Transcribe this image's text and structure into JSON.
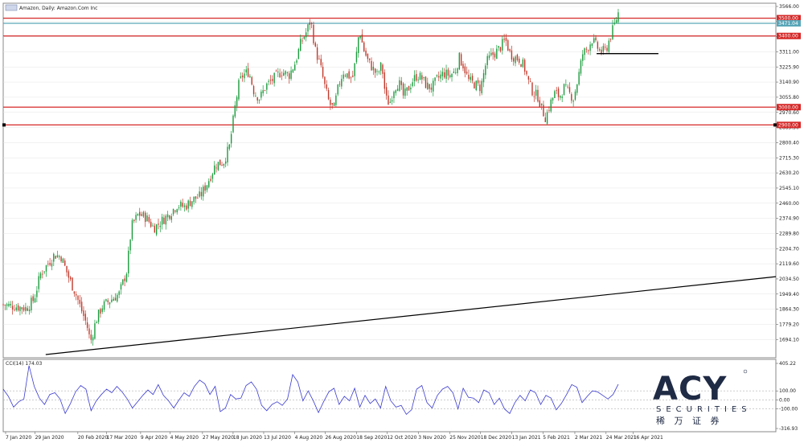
{
  "chart_data": [
    {
      "type": "candlestick",
      "title": "Amazon, Daily: Amazon.Com Inc",
      "ylim": [
        1609.4,
        3566.0
      ],
      "y_ticks": [
        "3566.00",
        "3481.00",
        "3396.00",
        "3311.00",
        "3225.90",
        "3140.90",
        "3055.80",
        "2970.60",
        "2885.50",
        "2800.40",
        "2715.30",
        "2630.20",
        "2545.10",
        "2460.00",
        "2374.90",
        "2289.80",
        "2204.70",
        "2119.60",
        "2034.50",
        "1949.40",
        "1864.30",
        "1779.20",
        "1694.10"
      ],
      "x_ticks": [
        "7 Jan 2020",
        "29 Jan 2020",
        "20 Feb 2020",
        "17 Mar 2020",
        "9 Apr 2020",
        "4 May 2020",
        "27 May 2020",
        "18 Jun 2020",
        "13 Jul 2020",
        "4 Aug 2020",
        "26 Aug 2020",
        "18 Sep 2020",
        "12 Oct 2020",
        "3 Nov 2020",
        "25 Nov 2020",
        "18 Dec 2020",
        "13 Jan 2021",
        "5 Feb 2021",
        "2 Mar 2021",
        "24 Mar 2021",
        "16 Apr 2021"
      ],
      "x_tick_frac": [
        0.0,
        0.0381,
        0.0935,
        0.1306,
        0.1747,
        0.2129,
        0.2548,
        0.2944,
        0.334,
        0.3742,
        0.4136,
        0.454,
        0.4936,
        0.5341,
        0.5747,
        0.6147,
        0.6552,
        0.6954,
        0.7367,
        0.7771,
        0.8124
      ],
      "price_path": [
        [
          0.0,
          1890
        ],
        [
          0.015,
          1880
        ],
        [
          0.03,
          1870
        ],
        [
          0.04,
          1920
        ],
        [
          0.048,
          2060
        ],
        [
          0.058,
          2120
        ],
        [
          0.066,
          2170
        ],
        [
          0.075,
          2160
        ],
        [
          0.085,
          2040
        ],
        [
          0.094,
          1950
        ],
        [
          0.102,
          1850
        ],
        [
          0.108,
          1780
        ],
        [
          0.113,
          1680
        ],
        [
          0.12,
          1800
        ],
        [
          0.128,
          1880
        ],
        [
          0.14,
          1920
        ],
        [
          0.15,
          1950
        ],
        [
          0.16,
          2080
        ],
        [
          0.166,
          2330
        ],
        [
          0.175,
          2400
        ],
        [
          0.185,
          2380
        ],
        [
          0.195,
          2320
        ],
        [
          0.205,
          2360
        ],
        [
          0.215,
          2400
        ],
        [
          0.225,
          2450
        ],
        [
          0.235,
          2440
        ],
        [
          0.245,
          2480
        ],
        [
          0.255,
          2500
        ],
        [
          0.265,
          2580
        ],
        [
          0.275,
          2680
        ],
        [
          0.285,
          2690
        ],
        [
          0.293,
          2780
        ],
        [
          0.3,
          3000
        ],
        [
          0.305,
          3130
        ],
        [
          0.31,
          3180
        ],
        [
          0.318,
          3200
        ],
        [
          0.325,
          3080
        ],
        [
          0.332,
          3050
        ],
        [
          0.34,
          3120
        ],
        [
          0.35,
          3160
        ],
        [
          0.36,
          3200
        ],
        [
          0.37,
          3180
        ],
        [
          0.378,
          3250
        ],
        [
          0.385,
          3360
        ],
        [
          0.392,
          3420
        ],
        [
          0.398,
          3490
        ],
        [
          0.404,
          3320
        ],
        [
          0.41,
          3240
        ],
        [
          0.416,
          3120
        ],
        [
          0.422,
          3020
        ],
        [
          0.428,
          2990
        ],
        [
          0.434,
          3120
        ],
        [
          0.44,
          3200
        ],
        [
          0.446,
          3180
        ],
        [
          0.452,
          3160
        ],
        [
          0.457,
          3290
        ],
        [
          0.461,
          3440
        ],
        [
          0.466,
          3330
        ],
        [
          0.472,
          3260
        ],
        [
          0.478,
          3220
        ],
        [
          0.484,
          3180
        ],
        [
          0.49,
          3240
        ],
        [
          0.495,
          3050
        ],
        [
          0.5,
          3020
        ],
        [
          0.506,
          3110
        ],
        [
          0.512,
          3140
        ],
        [
          0.518,
          3060
        ],
        [
          0.524,
          3100
        ],
        [
          0.53,
          3150
        ],
        [
          0.536,
          3180
        ],
        [
          0.542,
          3160
        ],
        [
          0.548,
          3120
        ],
        [
          0.555,
          3110
        ],
        [
          0.562,
          3160
        ],
        [
          0.57,
          3190
        ],
        [
          0.578,
          3180
        ],
        [
          0.585,
          3200
        ],
        [
          0.59,
          3280
        ],
        [
          0.596,
          3230
        ],
        [
          0.602,
          3150
        ],
        [
          0.61,
          3130
        ],
        [
          0.618,
          3110
        ],
        [
          0.625,
          3250
        ],
        [
          0.632,
          3290
        ],
        [
          0.638,
          3310
        ],
        [
          0.644,
          3340
        ],
        [
          0.65,
          3380
        ],
        [
          0.656,
          3300
        ],
        [
          0.662,
          3280
        ],
        [
          0.668,
          3270
        ],
        [
          0.674,
          3230
        ],
        [
          0.68,
          3140
        ],
        [
          0.686,
          3080
        ],
        [
          0.692,
          3060
        ],
        [
          0.697,
          2990
        ],
        [
          0.702,
          2940
        ],
        [
          0.708,
          3020
        ],
        [
          0.714,
          3080
        ],
        [
          0.72,
          3060
        ],
        [
          0.726,
          3110
        ],
        [
          0.732,
          3080
        ],
        [
          0.738,
          3050
        ],
        [
          0.744,
          3160
        ],
        [
          0.75,
          3300
        ],
        [
          0.756,
          3330
        ],
        [
          0.762,
          3380
        ],
        [
          0.768,
          3340
        ],
        [
          0.774,
          3310
        ],
        [
          0.78,
          3320
        ],
        [
          0.786,
          3400
        ],
        [
          0.791,
          3460
        ],
        [
          0.796,
          3530
        ]
      ],
      "horizontal_levels": [
        {
          "value": 3500.0,
          "label": "3500.00",
          "color": "#d62828"
        },
        {
          "value": 3471.04,
          "label": "3471.04",
          "color": "#5aa6b8"
        },
        {
          "value": 3400.0,
          "label": "3400.00",
          "color": "#d62828"
        },
        {
          "value": 3000.0,
          "label": "3000.00",
          "color": "#d62828"
        },
        {
          "value": 2900.0,
          "label": "2900.00",
          "color": "#d62828"
        }
      ],
      "support_segment": {
        "x_from_frac": 0.768,
        "x_to_frac": 0.848,
        "value": 3301.0,
        "color": "#000000"
      },
      "trendline": {
        "x_from_frac": 0.055,
        "y_from": 1609.4,
        "x_to_frac": 1.0,
        "y_to": 2047.0,
        "color": "#000000"
      },
      "colors": {
        "up": "#1a9b3c",
        "down": "#c0392b",
        "grid": "#e6e6e6",
        "frame": "#888888"
      }
    },
    {
      "type": "line",
      "title": "CCI(14) 174.03",
      "ylim": [
        -316.93,
        405.22
      ],
      "y_ticks": [
        "405.22",
        "100.00",
        "0.00",
        "-100.00",
        "-316.93"
      ],
      "reference_lines": [
        100,
        0,
        -100
      ],
      "line_color": "#3a3ad0",
      "values": [
        120,
        40,
        -80,
        -20,
        10,
        380,
        150,
        20,
        -50,
        60,
        80,
        10,
        -150,
        -40,
        90,
        160,
        120,
        -120,
        -10,
        60,
        120,
        80,
        150,
        90,
        10,
        -90,
        -20,
        50,
        110,
        60,
        170,
        50,
        -10,
        -90,
        0,
        80,
        40,
        150,
        220,
        180,
        60,
        150,
        -130,
        -90,
        60,
        10,
        20,
        160,
        200,
        120,
        -60,
        -120,
        -50,
        -20,
        -60,
        10,
        280,
        200,
        -10,
        100,
        -10,
        -140,
        -20,
        90,
        130,
        -50,
        40,
        -10,
        130,
        -80,
        50,
        -40,
        10,
        -90,
        150,
        -10,
        -80,
        -60,
        -160,
        -110,
        120,
        160,
        -30,
        -90,
        50,
        120,
        150,
        80,
        -100,
        130,
        30,
        20,
        -30,
        110,
        80,
        -50,
        20,
        -100,
        -150,
        -30,
        50,
        -10,
        110,
        80,
        -50,
        50,
        20,
        -110,
        -40,
        60,
        170,
        140,
        -30,
        40,
        100,
        90,
        50,
        10,
        60,
        174.03
      ]
    }
  ],
  "branding": {
    "logo_name": "ACY",
    "logo_sub": "SECURITIES",
    "logo_cn": "稀 万 证 券",
    "logo_color": "#1f2a44",
    "accent": "#3b6fb6"
  }
}
